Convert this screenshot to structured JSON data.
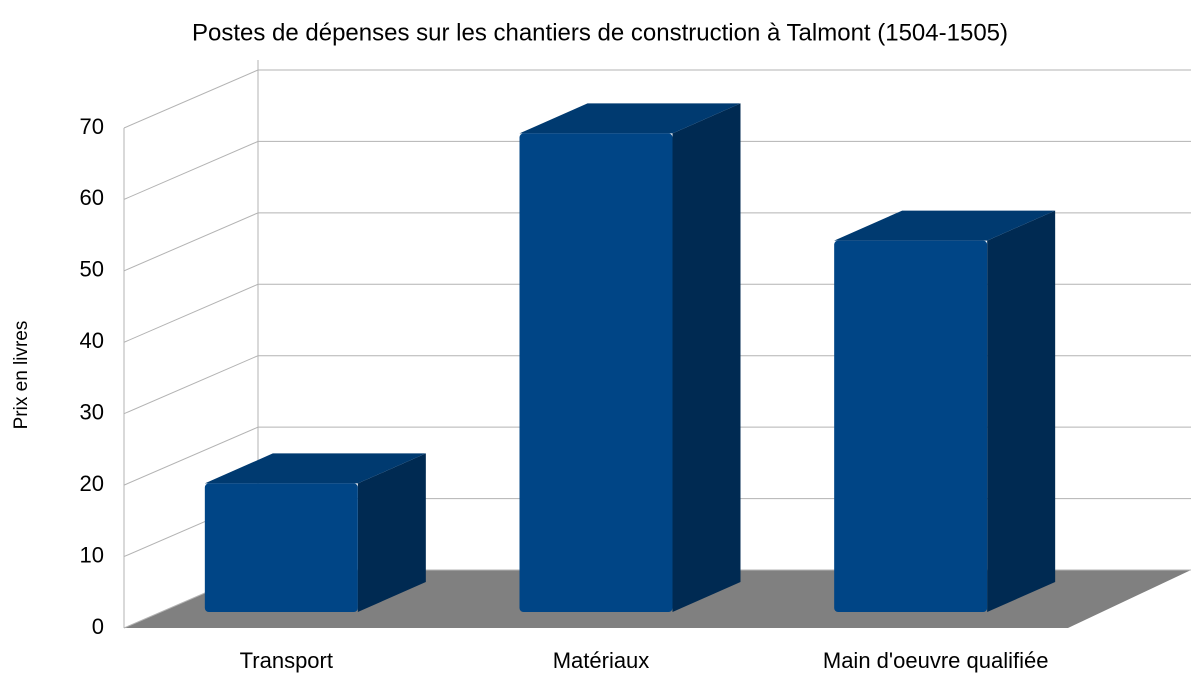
{
  "chart_data": {
    "type": "bar3d",
    "title": "Postes de dépenses sur les chantiers de construction à Talmont (1504-1505)",
    "y_label": "Prix en livres",
    "categories": [
      "Transport",
      "Matériaux",
      "Main d'oeuvre qualifiée"
    ],
    "values": [
      18,
      67,
      52
    ],
    "color": "#004586",
    "ylim": [
      0,
      70
    ],
    "yticks": [
      0,
      10,
      20,
      30,
      40,
      50,
      60,
      70
    ],
    "grid": true
  }
}
